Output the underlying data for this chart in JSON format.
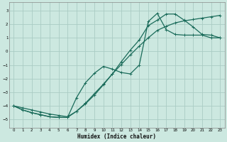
{
  "xlabel": "Humidex (Indice chaleur)",
  "background_color": "#cce8e0",
  "line_color": "#1a6b5a",
  "grid_color": "#aaccc4",
  "xlim": [
    -0.5,
    23.5
  ],
  "ylim": [
    -5.6,
    3.6
  ],
  "xticks": [
    0,
    1,
    2,
    3,
    4,
    5,
    6,
    7,
    8,
    9,
    10,
    11,
    12,
    13,
    14,
    15,
    16,
    17,
    18,
    19,
    20,
    21,
    22,
    23
  ],
  "yticks": [
    -5,
    -4,
    -3,
    -2,
    -1,
    0,
    1,
    2,
    3
  ],
  "line1_x": [
    0,
    1,
    2,
    3,
    4,
    5,
    6,
    7,
    8,
    9,
    10,
    11,
    12,
    13,
    14,
    15,
    16,
    17,
    18,
    19,
    20,
    21,
    22,
    23
  ],
  "line1_y": [
    -4.0,
    -4.3,
    -4.5,
    -4.65,
    -4.8,
    -4.85,
    -4.85,
    -4.4,
    -3.85,
    -3.2,
    -2.45,
    -1.65,
    -0.75,
    0.1,
    0.85,
    1.9,
    2.3,
    2.75,
    2.75,
    2.3,
    1.8,
    1.25,
    1.2,
    1.0
  ],
  "line2_x": [
    0,
    1,
    2,
    3,
    4,
    5,
    6,
    7,
    8,
    9,
    10,
    11,
    12,
    13,
    14,
    15,
    16,
    17,
    18,
    19,
    20,
    21,
    22,
    23
  ],
  "line2_y": [
    -4.0,
    -4.3,
    -4.5,
    -4.65,
    -4.8,
    -4.85,
    -4.85,
    -3.4,
    -2.3,
    -1.6,
    -1.1,
    -1.3,
    -1.55,
    -1.65,
    -1.0,
    2.2,
    2.8,
    1.6,
    1.25,
    1.2,
    1.2,
    1.2,
    1.0,
    1.0
  ],
  "line3_x": [
    0,
    1,
    2,
    3,
    4,
    5,
    6,
    7,
    8,
    9,
    10,
    11,
    12,
    13,
    14,
    15,
    16,
    17,
    18,
    19,
    20,
    21,
    22,
    23
  ],
  "line3_y": [
    -4.0,
    -4.15,
    -4.3,
    -4.45,
    -4.6,
    -4.7,
    -4.8,
    -4.4,
    -3.8,
    -3.1,
    -2.4,
    -1.65,
    -0.95,
    -0.25,
    0.4,
    1.0,
    1.55,
    1.85,
    2.1,
    2.25,
    2.35,
    2.45,
    2.55,
    2.65
  ]
}
